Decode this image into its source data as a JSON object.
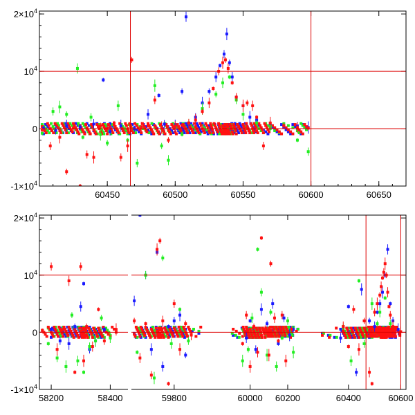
{
  "colors": {
    "blue": "#1a1aff",
    "green": "#22ee22",
    "red": "#ff1111",
    "line": "#dd0000"
  },
  "chart_data": [
    {
      "type": "scatter",
      "title": "",
      "xlabel": "",
      "ylabel": "",
      "xlim": [
        60400,
        60670
      ],
      "ylim": [
        -10000,
        20500
      ],
      "x_ticks": [
        {
          "value": 60450,
          "label": "60450"
        },
        {
          "value": 60500,
          "label": "60500"
        },
        {
          "value": 60550,
          "label": "60550"
        },
        {
          "value": 60600,
          "label": "60600"
        },
        {
          "value": 60650,
          "label": "60650"
        }
      ],
      "y_ticks": [
        {
          "value": -10000,
          "base": "-1×10",
          "exp": "4"
        },
        {
          "value": 0,
          "base": "0",
          "exp": ""
        },
        {
          "value": 10000,
          "base": "10",
          "exp": "4"
        },
        {
          "value": 20000,
          "base": "2×10",
          "exp": "4"
        }
      ],
      "reference_lines": {
        "vertical": [
          60467,
          60600
        ],
        "horizontal": [
          0,
          10000
        ]
      },
      "series": [
        {
          "color": "blue",
          "x": [
            60403,
            60412,
            60420,
            60430,
            60440,
            60447,
            60452,
            60460,
            60470,
            60480,
            60488,
            60492,
            60500,
            60505,
            60508,
            60510,
            60515,
            60520,
            60525,
            60530,
            60533,
            60536,
            60538,
            60540,
            60542,
            60545,
            60550,
            60555,
            60560,
            60570,
            60580,
            60590,
            60598
          ],
          "y": [
            100,
            -300,
            500,
            300,
            800,
            8500,
            -500,
            500,
            0,
            2500,
            5800,
            800,
            500,
            6500,
            19500,
            700,
            2000,
            4500,
            6500,
            9000,
            11000,
            13000,
            16500,
            11500,
            9000,
            5500,
            4000,
            2000,
            1500,
            600,
            300,
            500,
            200
          ]
        },
        {
          "color": "green",
          "x": [
            60402,
            60410,
            60415,
            60420,
            60428,
            60432,
            60438,
            60445,
            60450,
            60458,
            60465,
            60472,
            60485,
            60490,
            60495,
            60505,
            60510,
            60520,
            60530,
            60535,
            60540,
            60545,
            60550,
            60560,
            60570,
            60590,
            60598
          ],
          "y": [
            -800,
            3000,
            3800,
            2500,
            10500,
            -1500,
            2000,
            -1000,
            -2500,
            4000,
            -2000,
            -6000,
            7500,
            -3000,
            -5500,
            -1000,
            1000,
            3500,
            6000,
            8000,
            9000,
            5000,
            2500,
            1000,
            400,
            -2000,
            -4000
          ]
        },
        {
          "color": "red",
          "x": [
            60402,
            60408,
            60415,
            60420,
            60425,
            60430,
            60435,
            60440,
            60445,
            60450,
            60455,
            60460,
            60465,
            60468,
            60475,
            60480,
            60485,
            60490,
            60495,
            60500,
            60505,
            60510,
            60515,
            60520,
            60525,
            60528,
            60532,
            60535,
            60537,
            60539,
            60542,
            60545,
            60550,
            60553,
            60557,
            60560,
            60565,
            60570,
            60580,
            60590,
            60598
          ],
          "y": [
            -200,
            -3000,
            -1500,
            -7500,
            100,
            -10000,
            -4500,
            -5000,
            500,
            0,
            1000,
            -5000,
            -3000,
            12000,
            300,
            500,
            5000,
            200,
            -2000,
            400,
            600,
            1000,
            1500,
            3000,
            4500,
            7000,
            10000,
            11500,
            12000,
            10500,
            8000,
            5500,
            4000,
            4500,
            4000,
            2000,
            -3000,
            1000,
            500,
            200,
            100
          ]
        }
      ]
    },
    {
      "type": "scatter",
      "title": "",
      "xlabel": "",
      "ylabel": "",
      "ylim": [
        -10000,
        20500
      ],
      "segments": [
        {
          "xlim": [
            58160,
            58460
          ],
          "ticks": [
            {
              "value": 58200,
              "label": "58200"
            },
            {
              "value": 58400,
              "label": "58400"
            }
          ]
        },
        {
          "xlim": [
            59650,
            59900
          ],
          "ticks": [
            {
              "value": 59800,
              "label": "59800"
            }
          ]
        },
        {
          "xlim": [
            59880,
            60270
          ],
          "ticks": [
            {
              "value": 60000,
              "label": "60000"
            },
            {
              "value": 60200,
              "label": "60200"
            }
          ]
        },
        {
          "xlim": [
            60300,
            60620
          ],
          "ticks": [
            {
              "value": 60400,
              "label": "60400"
            },
            {
              "value": 60600,
              "label": "60600"
            }
          ]
        }
      ],
      "y_ticks": [
        {
          "value": -10000,
          "base": "-1×10",
          "exp": "4"
        },
        {
          "value": 0,
          "base": "0",
          "exp": ""
        },
        {
          "value": 10000,
          "base": "10",
          "exp": "4"
        },
        {
          "value": 20000,
          "base": "2×10",
          "exp": "4"
        }
      ],
      "reference_lines": {
        "vertical": [
          60467,
          60600
        ],
        "horizontal": [
          0,
          10000
        ]
      },
      "series": [
        {
          "color": "blue",
          "x": [
            58200,
            58230,
            58260,
            58280,
            58300,
            58310,
            58330,
            58350,
            58380,
            59660,
            59680,
            59700,
            59720,
            59740,
            59760,
            59780,
            59800,
            59820,
            59840,
            59980,
            60000,
            60030,
            60060,
            60090,
            60120,
            60150,
            60180,
            60210,
            60230,
            60370,
            60400,
            60430,
            60450,
            60480,
            60500,
            60510,
            60520,
            60530,
            60540,
            60550,
            60560,
            60570,
            60590
          ],
          "y": [
            500,
            -1500,
            -2000,
            1000,
            4500,
            8500,
            -3000,
            -1500,
            500,
            5500,
            20500,
            10000,
            -3000,
            14000,
            -6000,
            1000,
            2000,
            3000,
            -4000,
            -1000,
            2000,
            -3000,
            4000,
            1500,
            5000,
            -2000,
            2500,
            -500,
            500,
            -1000,
            4500,
            -7000,
            7500,
            2000,
            1000,
            3500,
            5000,
            7000,
            10000,
            14500,
            5000,
            2000,
            500
          ]
        },
        {
          "color": "green",
          "x": [
            58190,
            58220,
            58250,
            58270,
            58290,
            58310,
            58330,
            58350,
            58370,
            58400,
            59670,
            59700,
            59730,
            59760,
            59790,
            59820,
            59850,
            59960,
            59990,
            60010,
            60040,
            60060,
            60090,
            60110,
            60140,
            60170,
            60200,
            60230,
            60380,
            60410,
            60440,
            60460,
            60490,
            60510,
            60520,
            60540,
            60560
          ],
          "y": [
            -2000,
            -4500,
            -6000,
            3000,
            -5000,
            -7000,
            -2500,
            -1500,
            2500,
            -1000,
            -3500,
            10000,
            -8000,
            13000,
            -2000,
            4000,
            -1500,
            -5000,
            -3000,
            2500,
            14500,
            7000,
            -4000,
            3500,
            -6000,
            -1000,
            2000,
            -3500,
            1000,
            -5000,
            9000,
            -2000,
            5000,
            1500,
            3500,
            6000,
            1500
          ]
        },
        {
          "color": "red",
          "x": [
            58170,
            58200,
            58220,
            58240,
            58260,
            58280,
            58300,
            58310,
            58320,
            58340,
            58360,
            58380,
            58420,
            59660,
            59680,
            59700,
            59720,
            59740,
            59750,
            59760,
            59780,
            59800,
            59820,
            59840,
            59860,
            59960,
            59980,
            60000,
            60020,
            60040,
            60060,
            60080,
            60100,
            60110,
            60130,
            60150,
            60170,
            60190,
            60220,
            60380,
            60400,
            60420,
            60440,
            60460,
            60480,
            60490,
            60500,
            60510,
            60520,
            60525,
            60530,
            60535,
            60540,
            60545,
            60550,
            60555,
            60560,
            60570,
            60580,
            60600
          ],
          "y": [
            300,
            11500,
            -3000,
            500,
            9000,
            -7000,
            11500,
            -5000,
            1000,
            -2500,
            4000,
            -1500,
            500,
            2000,
            -4500,
            1500,
            -7500,
            14500,
            16000,
            2000,
            -9000,
            5000,
            -3000,
            1500,
            -500,
            -2000,
            3000,
            -6000,
            1000,
            -3500,
            16500,
            500,
            -4000,
            12000,
            2500,
            -1500,
            3000,
            -5000,
            500,
            1000,
            -2500,
            4000,
            -3000,
            2000,
            -7000,
            -9000,
            3500,
            5000,
            6500,
            8000,
            9500,
            10500,
            12000,
            10000,
            7000,
            4500,
            3000,
            1000,
            500,
            100
          ]
        }
      ]
    }
  ]
}
